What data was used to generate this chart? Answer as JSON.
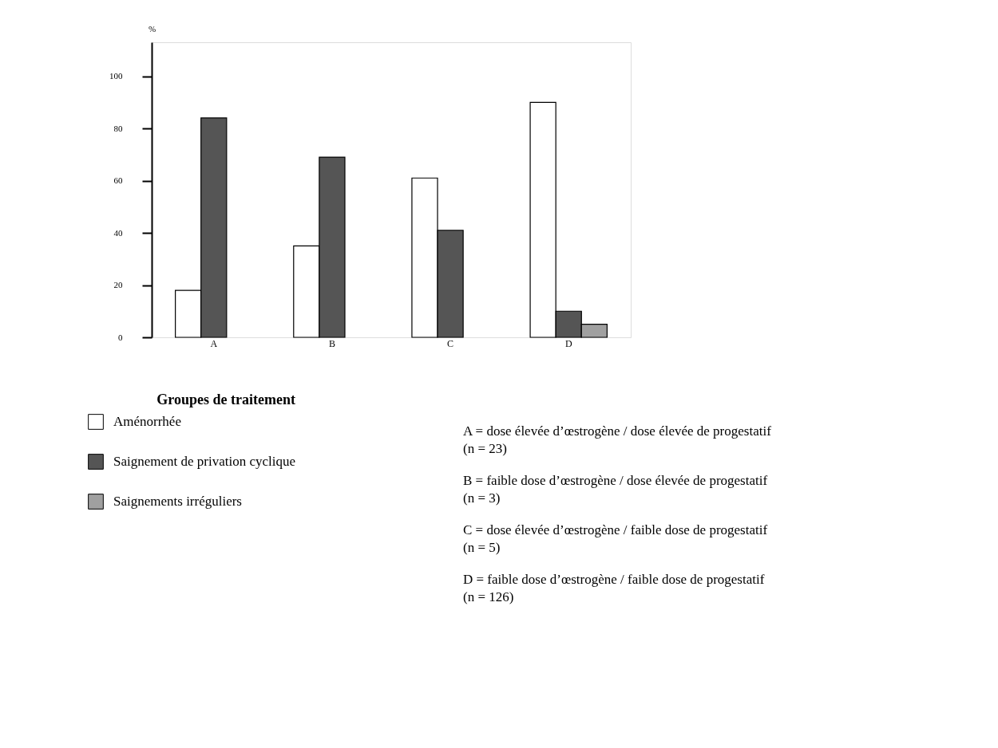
{
  "chart_data": {
    "type": "bar",
    "ylabel": "%",
    "xlabel": "Groupes de traitement",
    "categories": [
      "A",
      "B",
      "C",
      "D"
    ],
    "ylim": [
      0,
      113
    ],
    "yticks": [
      0,
      20,
      40,
      60,
      80,
      100
    ],
    "series": [
      {
        "name": "Aménorrhée",
        "color": "#ffffff",
        "values": [
          18,
          35,
          61,
          90
        ]
      },
      {
        "name": "Saignement de privation cyclique",
        "color": "#555555",
        "values": [
          84,
          69,
          41,
          10
        ]
      },
      {
        "name": "Saignements irréguliers",
        "color": "#a0a0a0",
        "values": [
          null,
          null,
          null,
          5
        ]
      }
    ],
    "legend": "bottom",
    "grid": false,
    "annotations": [
      "A = dose élevée d’œstrogène / dose élevée de progestatif\n(n = 23)",
      "B = faible dose d’œstrogène / dose élevée de progestatif\n(n = 3)",
      "C = dose élevée d’œstrogène / faible dose de progestatif\n(n = 5)",
      "D = faible dose d’œstrogène / faible dose de progestatif\n(n = 126)"
    ]
  }
}
